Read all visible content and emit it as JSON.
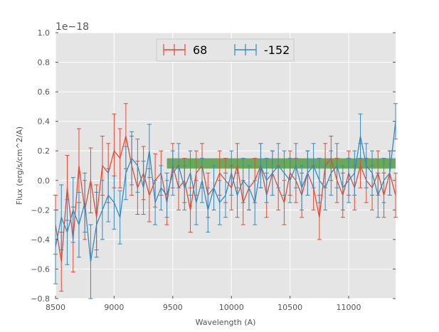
{
  "chart_data": {
    "type": "line",
    "title": "",
    "xlabel": "Wavelength (A)",
    "ylabel": "Flux (erg/s/cm^2/A)",
    "y_offset_label": "1e−18",
    "xlim": [
      8500,
      11400
    ],
    "ylim": [
      -0.8,
      1.0
    ],
    "x_ticks": [
      "8500",
      "9000",
      "9500",
      "10000",
      "10500",
      "11000"
    ],
    "y_ticks": [
      "−0.8",
      "−0.6",
      "−0.4",
      "−0.2",
      "0.0",
      "0.2",
      "0.4",
      "0.6",
      "0.8",
      "1.0"
    ],
    "grid": true,
    "legend_position": "top-center",
    "band": {
      "x": [
        9450,
        11400
      ],
      "y": [
        0.08,
        0.15
      ],
      "color": "#4a9a3a"
    },
    "series": [
      {
        "name": "68",
        "color": "#e24a33",
        "x": [
          8500,
          8550,
          8600,
          8650,
          8700,
          8750,
          8800,
          8850,
          8900,
          8950,
          9000,
          9050,
          9100,
          9150,
          9200,
          9250,
          9300,
          9350,
          9400,
          9450,
          9500,
          9550,
          9600,
          9650,
          9700,
          9750,
          9800,
          9850,
          9900,
          9950,
          10000,
          10050,
          10100,
          10150,
          10200,
          10250,
          10300,
          10350,
          10400,
          10450,
          10500,
          10550,
          10600,
          10650,
          10700,
          10750,
          10800,
          10850,
          10900,
          10950,
          11000,
          11050,
          11100,
          11150,
          11200,
          11250,
          11300,
          11350,
          11400
        ],
        "y": [
          -0.3,
          -0.55,
          -0.05,
          -0.4,
          0.1,
          -0.2,
          0.0,
          -0.25,
          0.1,
          0.05,
          0.2,
          0.15,
          0.3,
          0.1,
          -0.05,
          0.05,
          -0.1,
          0.0,
          0.05,
          -0.15,
          0.1,
          -0.05,
          0.0,
          -0.2,
          0.05,
          0.1,
          -0.1,
          -0.05,
          0.05,
          0.0,
          -0.05,
          0.1,
          -0.15,
          -0.05,
          0.0,
          0.1,
          -0.1,
          0.05,
          -0.05,
          -0.15,
          0.05,
          0.0,
          -0.1,
          0.05,
          -0.05,
          -0.25,
          0.1,
          0.15,
          0.0,
          -0.1,
          0.05,
          -0.05,
          0.1,
          0.0,
          -0.05,
          0.05,
          -0.1,
          0.05,
          -0.1
        ],
        "err": [
          0.2,
          0.2,
          0.22,
          0.22,
          0.25,
          0.2,
          0.22,
          0.22,
          0.2,
          0.2,
          0.25,
          0.2,
          0.22,
          0.2,
          0.18,
          0.18,
          0.18,
          0.18,
          0.15,
          0.15,
          0.15,
          0.15,
          0.15,
          0.15,
          0.15,
          0.15,
          0.15,
          0.15,
          0.15,
          0.15,
          0.15,
          0.15,
          0.15,
          0.15,
          0.15,
          0.15,
          0.15,
          0.15,
          0.15,
          0.15,
          0.15,
          0.15,
          0.15,
          0.15,
          0.15,
          0.15,
          0.15,
          0.15,
          0.15,
          0.15,
          0.15,
          0.15,
          0.15,
          0.15,
          0.15,
          0.15,
          0.15,
          0.15,
          0.15
        ]
      },
      {
        "name": "-152",
        "color": "#348abd",
        "x": [
          8500,
          8550,
          8600,
          8650,
          8700,
          8750,
          8800,
          8850,
          8900,
          8950,
          9000,
          9050,
          9100,
          9150,
          9200,
          9250,
          9300,
          9350,
          9400,
          9450,
          9500,
          9550,
          9600,
          9650,
          9700,
          9750,
          9800,
          9850,
          9900,
          9950,
          10000,
          10050,
          10100,
          10150,
          10200,
          10250,
          10300,
          10350,
          10400,
          10450,
          10500,
          10550,
          10600,
          10650,
          10700,
          10750,
          10800,
          10850,
          10900,
          10950,
          11000,
          11050,
          11100,
          11150,
          11200,
          11250,
          11300,
          11350,
          11400
        ],
        "y": [
          -0.45,
          -0.25,
          -0.35,
          -0.2,
          -0.3,
          -0.15,
          -0.55,
          -0.3,
          -0.2,
          -0.1,
          -0.15,
          -0.25,
          0.05,
          0.15,
          0.1,
          -0.05,
          0.2,
          -0.15,
          -0.05,
          -0.1,
          0.05,
          0.1,
          -0.05,
          0.05,
          -0.15,
          0.0,
          -0.2,
          -0.05,
          -0.15,
          -0.1,
          0.05,
          -0.1,
          0.0,
          -0.05,
          -0.15,
          0.1,
          0.0,
          0.05,
          0.1,
          0.05,
          0.0,
          0.1,
          -0.05,
          0.05,
          0.1,
          0.0,
          -0.05,
          0.05,
          0.1,
          -0.05,
          0.0,
          0.05,
          0.3,
          0.1,
          0.05,
          -0.1,
          0.0,
          0.05,
          0.4
        ],
        "err": [
          0.25,
          0.22,
          0.22,
          0.22,
          0.22,
          0.2,
          0.25,
          0.22,
          0.2,
          0.18,
          0.18,
          0.18,
          0.18,
          0.18,
          0.18,
          0.18,
          0.18,
          0.15,
          0.15,
          0.15,
          0.15,
          0.15,
          0.15,
          0.15,
          0.15,
          0.15,
          0.15,
          0.15,
          0.15,
          0.15,
          0.15,
          0.15,
          0.15,
          0.15,
          0.15,
          0.15,
          0.15,
          0.15,
          0.15,
          0.15,
          0.15,
          0.15,
          0.15,
          0.15,
          0.15,
          0.15,
          0.15,
          0.15,
          0.15,
          0.15,
          0.15,
          0.15,
          0.15,
          0.15,
          0.15,
          0.15,
          0.15,
          0.15,
          0.12
        ]
      }
    ]
  }
}
